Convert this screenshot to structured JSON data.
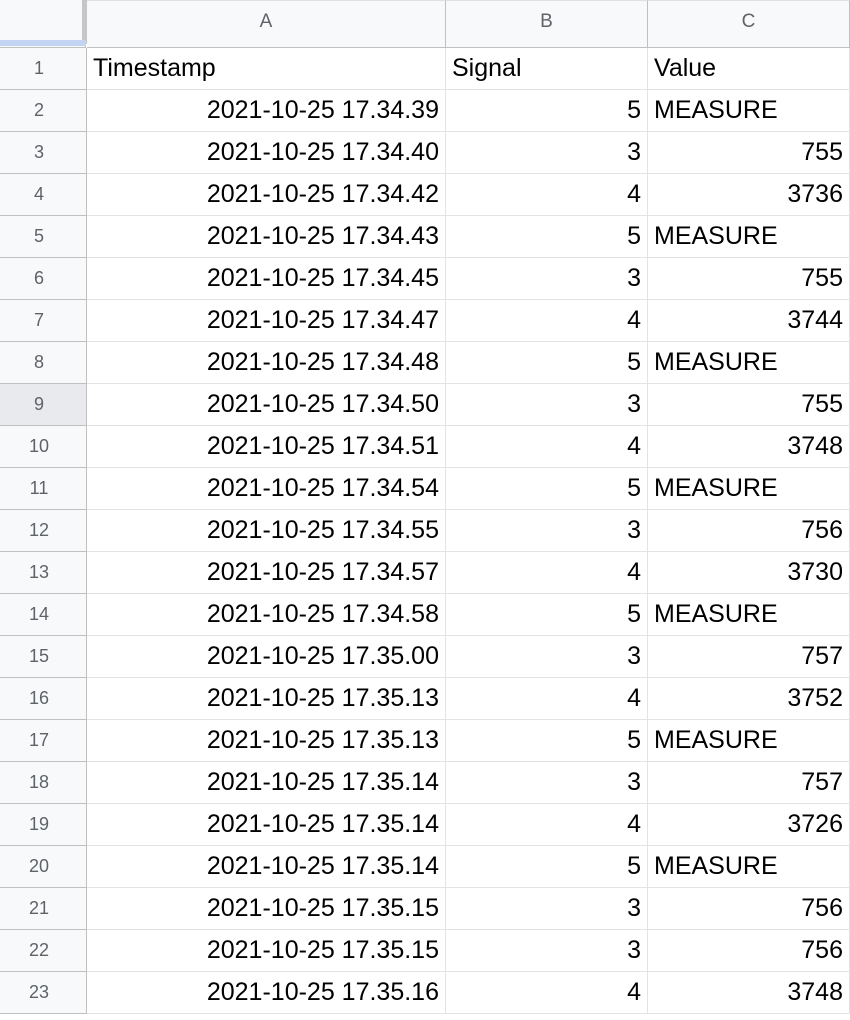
{
  "columns": [
    "A",
    "B",
    "C"
  ],
  "rows": [
    {
      "num": "1",
      "a": "Timestamp",
      "b": "Signal",
      "c": "Value"
    },
    {
      "num": "2",
      "a": "2021-10-25 17.34.39",
      "b": "5",
      "c": "MEASURE"
    },
    {
      "num": "3",
      "a": "2021-10-25 17.34.40",
      "b": "3",
      "c": "755"
    },
    {
      "num": "4",
      "a": "2021-10-25 17.34.42",
      "b": "4",
      "c": "3736"
    },
    {
      "num": "5",
      "a": "2021-10-25 17.34.43",
      "b": "5",
      "c": "MEASURE"
    },
    {
      "num": "6",
      "a": "2021-10-25 17.34.45",
      "b": "3",
      "c": "755"
    },
    {
      "num": "7",
      "a": "2021-10-25 17.34.47",
      "b": "4",
      "c": "3744"
    },
    {
      "num": "8",
      "a": "2021-10-25 17.34.48",
      "b": "5",
      "c": "MEASURE"
    },
    {
      "num": "9",
      "a": "2021-10-25 17.34.50",
      "b": "3",
      "c": "755"
    },
    {
      "num": "10",
      "a": "2021-10-25 17.34.51",
      "b": "4",
      "c": "3748"
    },
    {
      "num": "11",
      "a": "2021-10-25 17.34.54",
      "b": "5",
      "c": "MEASURE"
    },
    {
      "num": "12",
      "a": "2021-10-25 17.34.55",
      "b": "3",
      "c": "756"
    },
    {
      "num": "13",
      "a": "2021-10-25 17.34.57",
      "b": "4",
      "c": "3730"
    },
    {
      "num": "14",
      "a": "2021-10-25 17.34.58",
      "b": "5",
      "c": "MEASURE"
    },
    {
      "num": "15",
      "a": "2021-10-25 17.35.00",
      "b": "3",
      "c": "757"
    },
    {
      "num": "16",
      "a": "2021-10-25 17.35.13",
      "b": "4",
      "c": "3752"
    },
    {
      "num": "17",
      "a": "2021-10-25 17.35.13",
      "b": "5",
      "c": "MEASURE"
    },
    {
      "num": "18",
      "a": "2021-10-25 17.35.14",
      "b": "3",
      "c": "757"
    },
    {
      "num": "19",
      "a": "2021-10-25 17.35.14",
      "b": "4",
      "c": "3726"
    },
    {
      "num": "20",
      "a": "2021-10-25 17.35.14",
      "b": "5",
      "c": "MEASURE"
    },
    {
      "num": "21",
      "a": "2021-10-25 17.35.15",
      "b": "3",
      "c": "756"
    },
    {
      "num": "22",
      "a": "2021-10-25 17.35.15",
      "b": "3",
      "c": "756"
    },
    {
      "num": "23",
      "a": "2021-10-25 17.35.16",
      "b": "4",
      "c": "3748"
    }
  ],
  "selected_row": "9"
}
